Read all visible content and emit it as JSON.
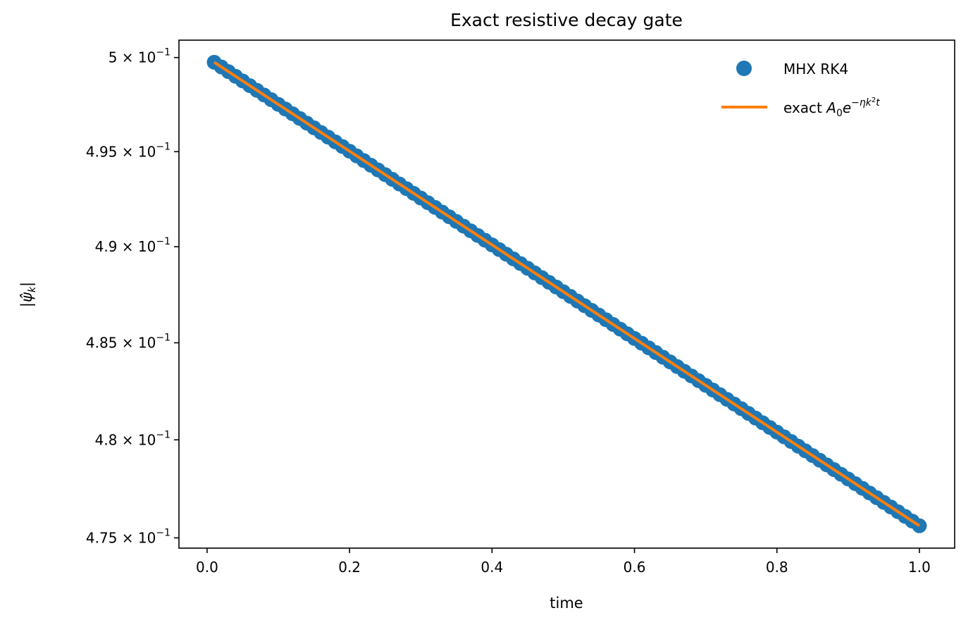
{
  "chart_data": {
    "type": "scatter",
    "title": "Exact resistive decay gate",
    "xlabel": "time",
    "ylabel": "|ψ̂_k|",
    "yscale": "log",
    "xlim": [
      -0.0395,
      1.0495
    ],
    "ylim": [
      0.47448,
      0.50093
    ],
    "xticks": [
      0.0,
      0.2,
      0.4,
      0.6,
      0.8,
      1.0
    ],
    "xtick_labels": [
      "0.0",
      "0.2",
      "0.4",
      "0.6",
      "0.8",
      "1.0"
    ],
    "yticks": [
      {
        "value": 0.5,
        "mantissa": "5"
      },
      {
        "value": 0.495,
        "mantissa": "4.95"
      },
      {
        "value": 0.49,
        "mantissa": "4.9"
      },
      {
        "value": 0.485,
        "mantissa": "4.85"
      },
      {
        "value": 0.48,
        "mantissa": "4.8"
      },
      {
        "value": 0.475,
        "mantissa": "4.75"
      }
    ],
    "ytick_suffix": "× 10",
    "ytick_exponent": "−1",
    "legend_position": "top-right",
    "series": [
      {
        "name": "MHX RK4",
        "kind": "markers",
        "color": "#1f77b4",
        "A0": 0.5,
        "decay_rate": 0.05,
        "t_start": 0.01,
        "t_end": 1.0,
        "t_step": 0.01
      },
      {
        "name": "exact A₀e^(−ηk²t)",
        "kind": "line",
        "color": "#ff7f0e",
        "A0": 0.5,
        "decay_rate": 0.05,
        "t_start": 0.01,
        "t_end": 1.0
      }
    ]
  }
}
